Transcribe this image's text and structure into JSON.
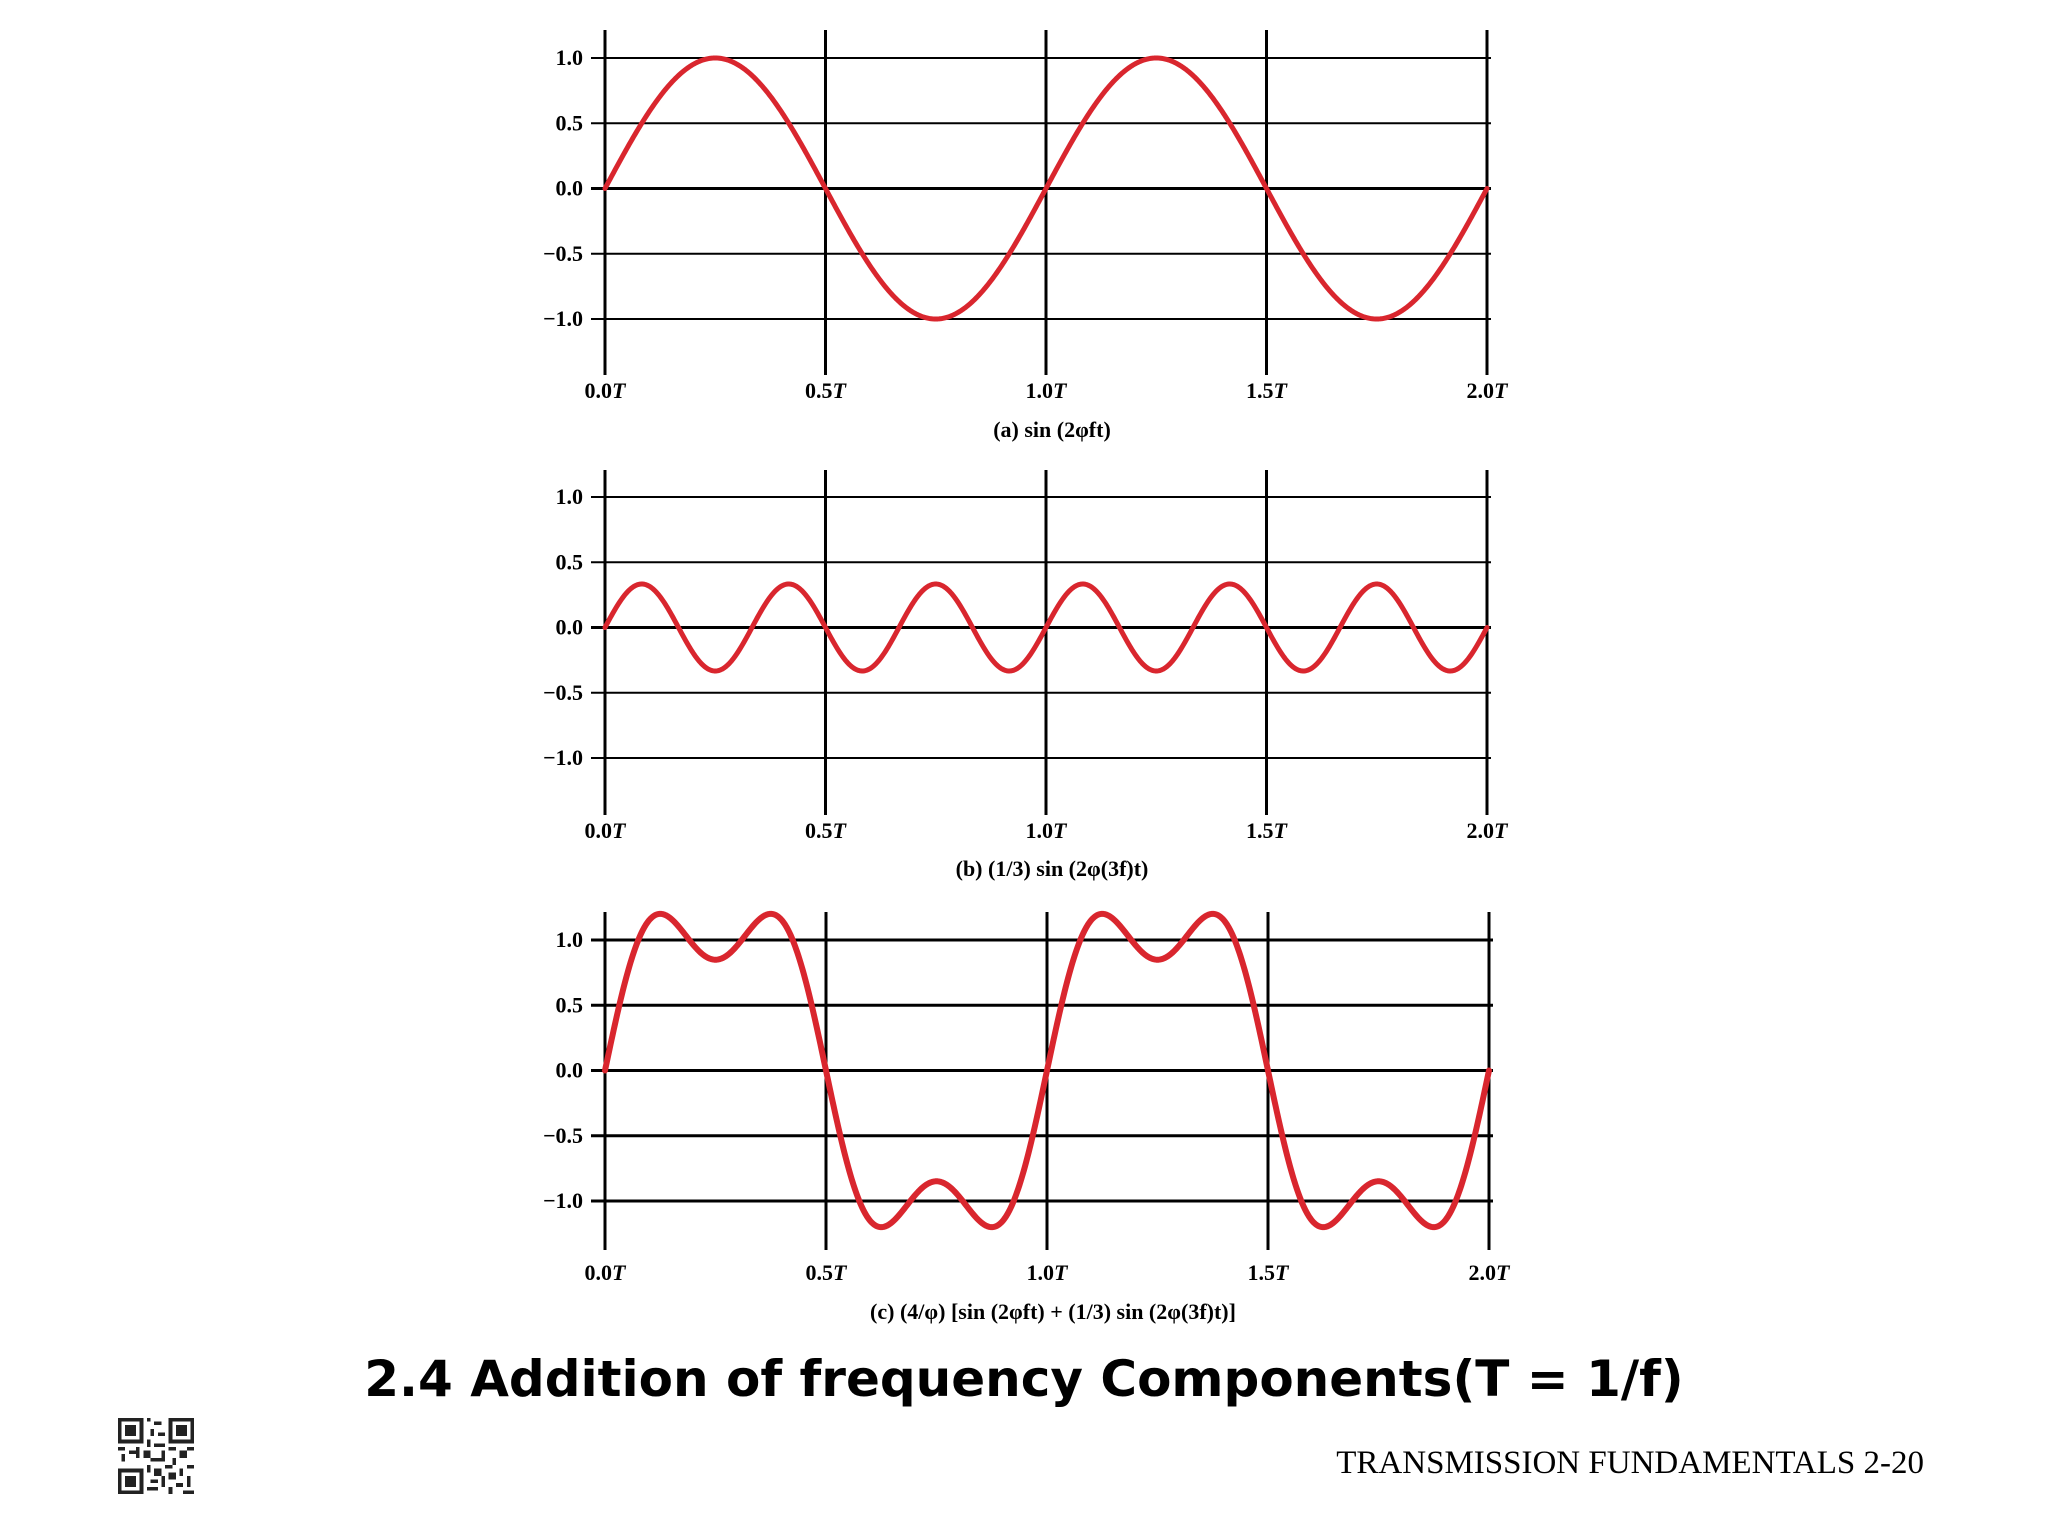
{
  "slide": {
    "title": "2.4 Addition of frequency Components(T = 1/f)",
    "footer": "TRANSMISSION FUNDAMENTALS 2-20"
  },
  "colors": {
    "curve": "#d9262e",
    "axis": "#000000"
  },
  "chart_data": [
    {
      "type": "line",
      "caption": "(a) sin (2φft)",
      "x_tick_labels": [
        "0.0T",
        "0.5T",
        "1.0T",
        "1.5T",
        "2.0T"
      ],
      "y_tick_labels": [
        "1.0",
        "0.5",
        "0.0",
        "−0.5",
        "−1.0"
      ],
      "x_ticks": [
        0,
        0.5,
        1.0,
        1.5,
        2.0
      ],
      "y_ticks": [
        1.0,
        0.5,
        0.0,
        -0.5,
        -1.0
      ],
      "xlim": [
        0,
        2
      ],
      "ylim": [
        -1.25,
        1.25
      ],
      "grid": true,
      "series": [
        {
          "function": "sin(2*pi*f*t)",
          "components": [
            {
              "amplitude": 1,
              "harmonic": 1
            }
          ],
          "scale": 1
        }
      ]
    },
    {
      "type": "line",
      "caption": "(b) (1/3) sin (2φ(3f)t)",
      "x_tick_labels": [
        "0.0T",
        "0.5T",
        "1.0T",
        "1.5T",
        "2.0T"
      ],
      "y_tick_labels": [
        "1.0",
        "0.5",
        "0.0",
        "−0.5",
        "−1.0"
      ],
      "x_ticks": [
        0,
        0.5,
        1.0,
        1.5,
        2.0
      ],
      "y_ticks": [
        1.0,
        0.5,
        0.0,
        -0.5,
        -1.0
      ],
      "xlim": [
        0,
        2
      ],
      "ylim": [
        -1.25,
        1.25
      ],
      "grid": true,
      "series": [
        {
          "function": "(1/3)*sin(2*pi*3f*t)",
          "components": [
            {
              "amplitude": 0.3333,
              "harmonic": 3
            }
          ],
          "scale": 1
        }
      ]
    },
    {
      "type": "line",
      "caption": "(c)  (4/φ) [sin (2φft) + (1/3) sin (2φ(3f)t)]",
      "x_tick_labels": [
        "0.0T",
        "0.5T",
        "1.0T",
        "1.5T",
        "2.0T"
      ],
      "y_tick_labels": [
        "1.0",
        "0.5",
        "0.0",
        "−0.5",
        "−1.0"
      ],
      "x_ticks": [
        0,
        0.5,
        1.0,
        1.5,
        2.0
      ],
      "y_ticks": [
        1.0,
        0.5,
        0.0,
        -0.5,
        -1.0
      ],
      "xlim": [
        0,
        2
      ],
      "ylim": [
        -1.25,
        1.25
      ],
      "grid": true,
      "series": [
        {
          "function": "(4/pi)*[sin(2*pi*f*t)+(1/3)*sin(2*pi*3f*t)]",
          "components": [
            {
              "amplitude": 1,
              "harmonic": 1
            },
            {
              "amplitude": 0.3333,
              "harmonic": 3
            }
          ],
          "scale": 1.2732
        }
      ]
    }
  ]
}
